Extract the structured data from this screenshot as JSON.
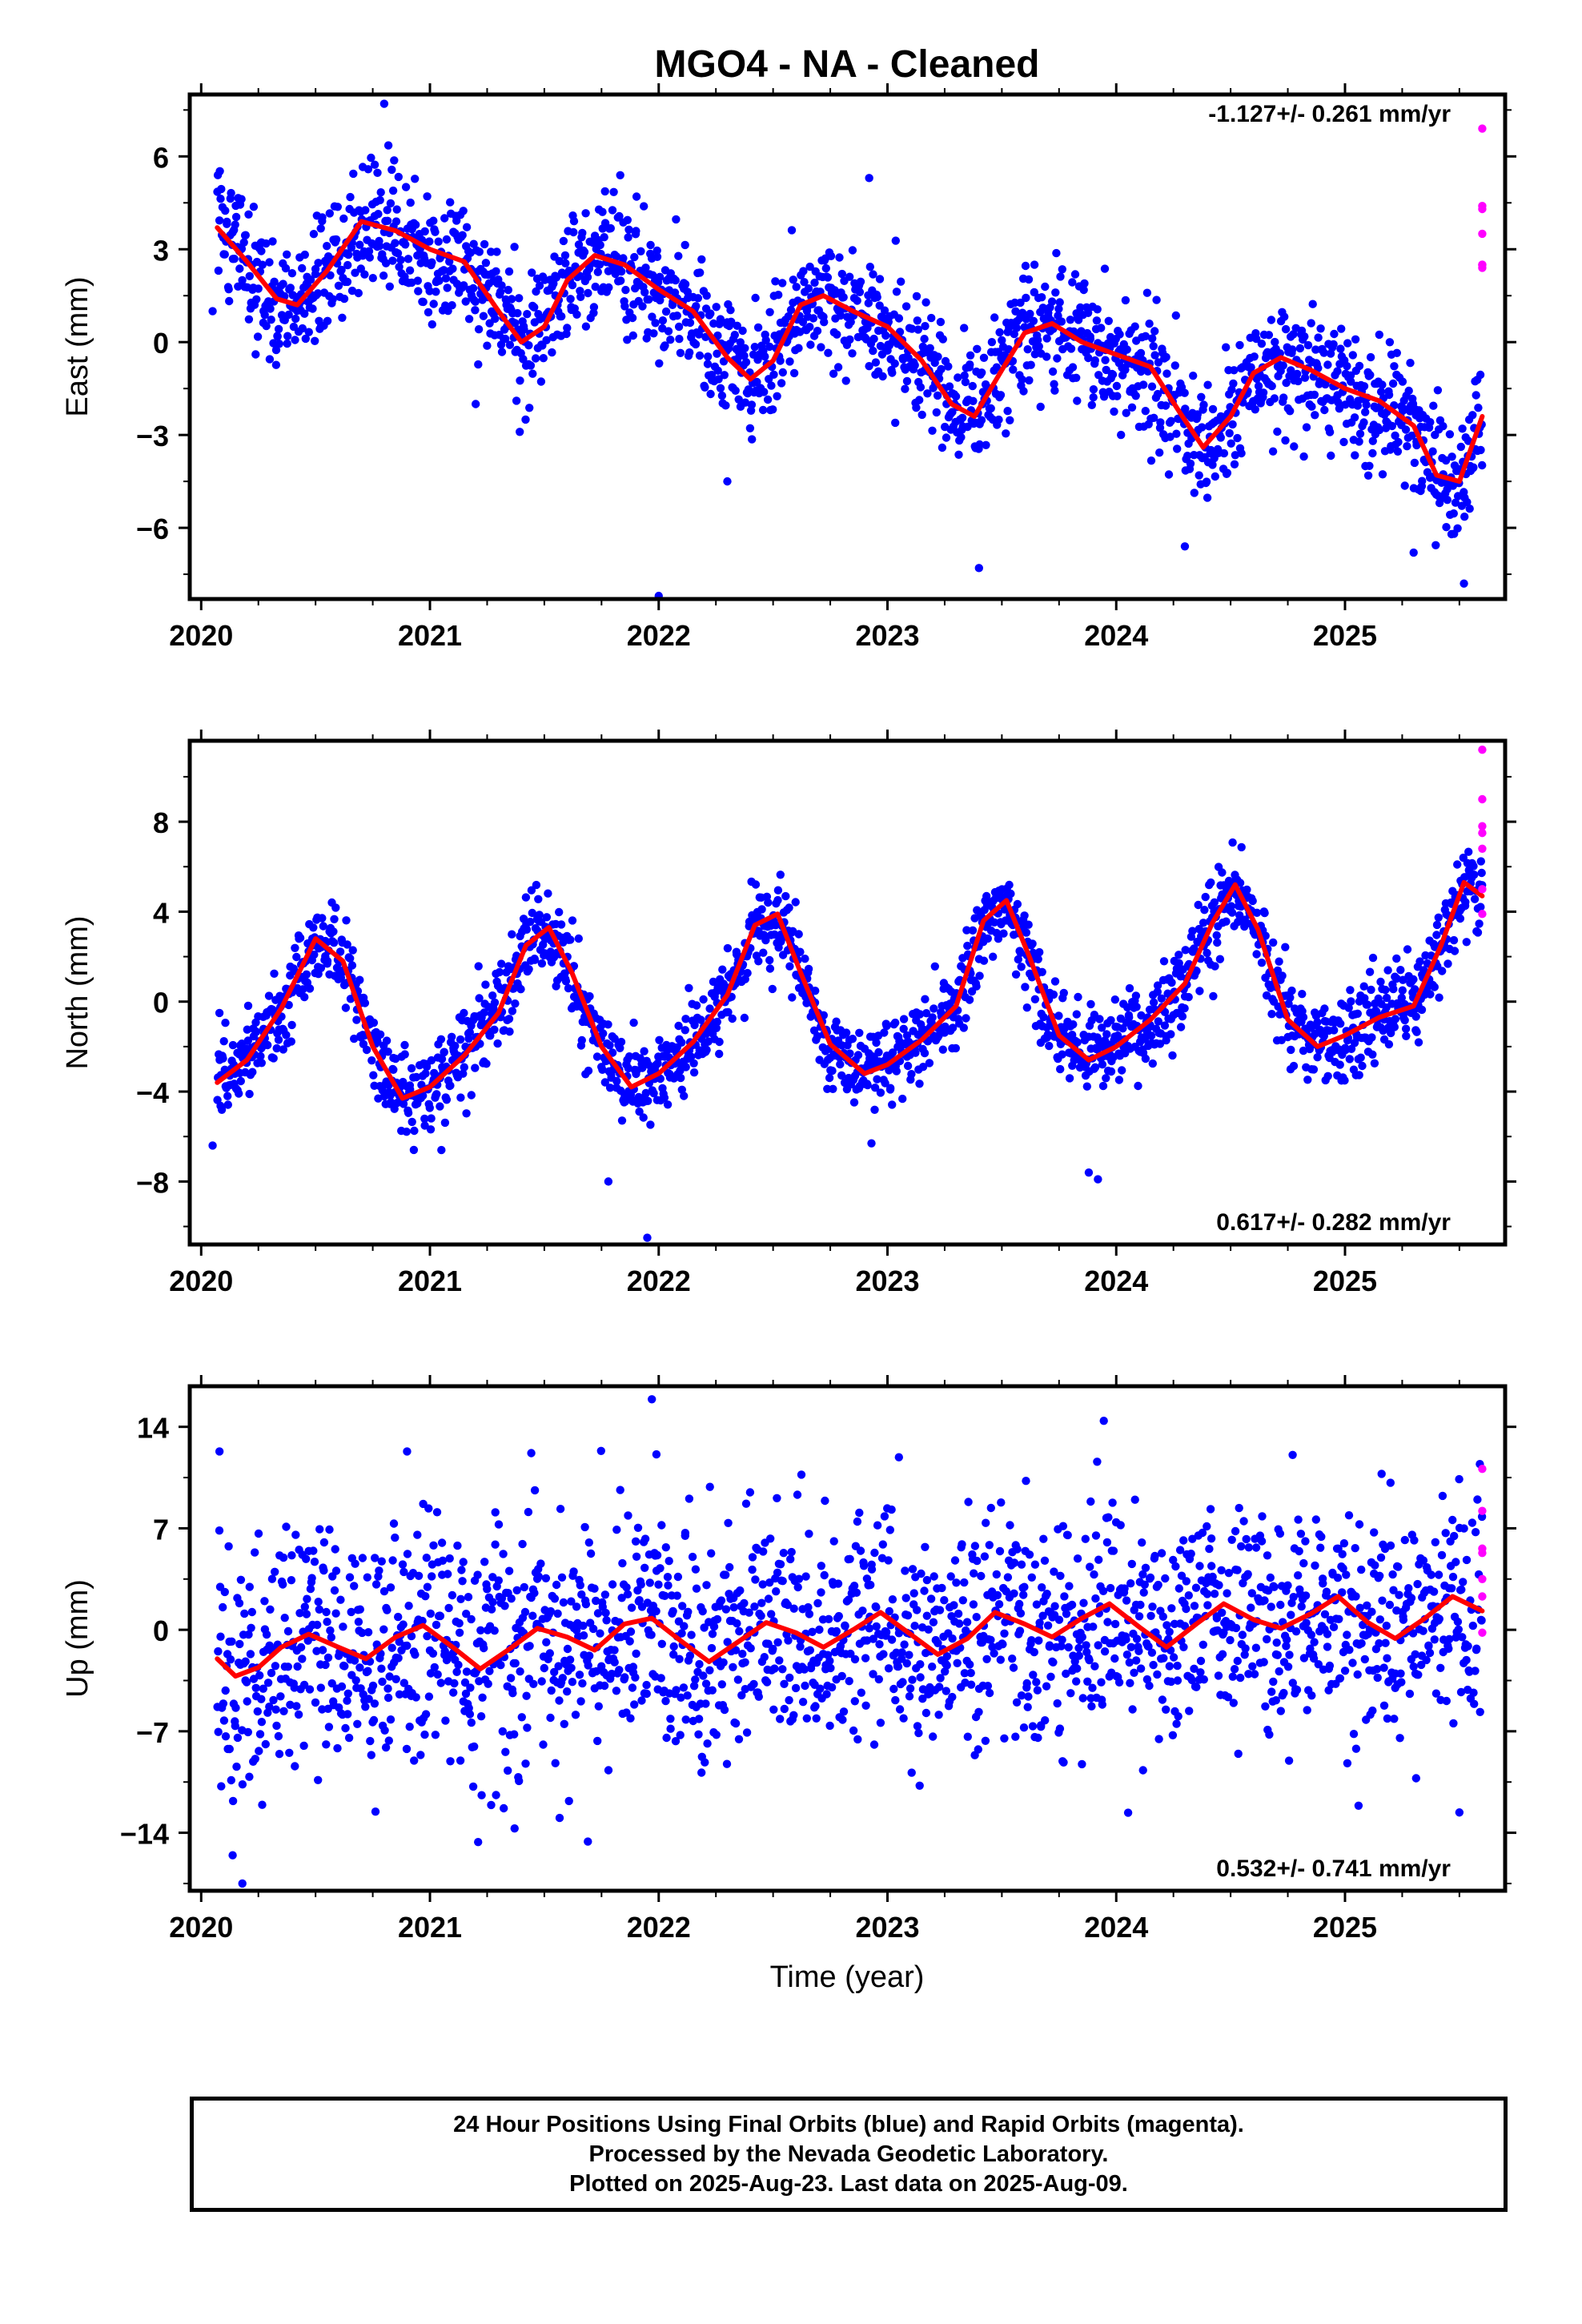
{
  "title": "MGO4  - NA - Cleaned",
  "xlabel": "Time (year)",
  "footer": {
    "line1": "24 Hour Positions Using Final Orbits (blue) and Rapid Orbits (magenta).",
    "line2": "Processed by the Nevada Geodetic Laboratory.",
    "line3": "Plotted on 2025-Aug-23. Last data on 2025-Aug-09."
  },
  "chart_data": [
    {
      "type": "scatter",
      "component": "east",
      "ylabel": "East (mm)",
      "rate_label": "-1.127+/- 0.261 mm/yr",
      "rate_position": "top-right",
      "xlim": [
        2019.95,
        2025.7
      ],
      "ylim": [
        -8.3,
        8.0
      ],
      "yticks": [
        -6,
        -3,
        0,
        3,
        6
      ],
      "yticklabels": [
        "−6",
        "−3",
        "0",
        "3",
        "6"
      ],
      "xticks": [
        2020,
        2021,
        2022,
        2023,
        2024,
        2025
      ],
      "xticklabels": [
        "2020",
        "2021",
        "2022",
        "2023",
        "2024",
        "2025"
      ],
      "colors": {
        "final": "#0000ff",
        "rapid": "#ff00ff",
        "model": "#ff0000"
      },
      "model": {
        "x": [
          2020.07,
          2020.2,
          2020.33,
          2020.42,
          2020.55,
          2020.7,
          2020.85,
          2021.0,
          2021.15,
          2021.3,
          2021.4,
          2021.5,
          2021.6,
          2021.72,
          2021.85,
          2022.0,
          2022.15,
          2022.3,
          2022.4,
          2022.5,
          2022.62,
          2022.72,
          2022.85,
          2023.0,
          2023.15,
          2023.28,
          2023.38,
          2023.5,
          2023.6,
          2023.72,
          2023.85,
          2024.0,
          2024.15,
          2024.28,
          2024.38,
          2024.5,
          2024.6,
          2024.72,
          2024.85,
          2025.0,
          2025.15,
          2025.3,
          2025.4,
          2025.5,
          2025.6
        ],
        "y": [
          3.7,
          2.6,
          1.4,
          1.2,
          2.3,
          3.9,
          3.6,
          3.0,
          2.6,
          1.0,
          0.0,
          0.5,
          2.0,
          2.8,
          2.5,
          1.7,
          1.0,
          -0.5,
          -1.2,
          -0.6,
          1.2,
          1.5,
          1.0,
          0.5,
          -0.6,
          -2.0,
          -2.4,
          -0.9,
          0.3,
          0.6,
          0.0,
          -0.4,
          -0.8,
          -2.3,
          -3.4,
          -2.4,
          -1.0,
          -0.5,
          -0.9,
          -1.5,
          -1.9,
          -2.7,
          -4.3,
          -4.5,
          -2.4
        ]
      },
      "rapid_points": {
        "x": [
          2025.6,
          2025.6,
          2025.6,
          2025.6,
          2025.6,
          2025.6,
          2025.6
        ],
        "y": [
          6.9,
          4.4,
          4.3,
          3.5,
          2.5,
          2.4,
          2.5
        ]
      },
      "final_points": {
        "noise": 1.0,
        "count": 1900,
        "outliers": {
          "x": [
            2020.05,
            2020.8,
            2021.2,
            2022.0,
            2022.3,
            2023.4,
            2024.3,
            2025.3,
            2025.52,
            2022.92
          ],
          "y": [
            1.0,
            7.7,
            -2.0,
            -8.2,
            -4.5,
            -7.3,
            -6.6,
            -6.8,
            -7.8,
            5.3
          ]
        }
      }
    },
    {
      "type": "scatter",
      "component": "north",
      "ylabel": "North (mm)",
      "rate_label": "0.617+/- 0.282 mm/yr",
      "rate_position": "bottom-right",
      "xlim": [
        2019.95,
        2025.7
      ],
      "ylim": [
        -10.8,
        11.6
      ],
      "yticks": [
        -8,
        -4,
        0,
        4,
        8
      ],
      "yticklabels": [
        "−8",
        "−4",
        "0",
        "4",
        "8"
      ],
      "xticks": [
        2020,
        2021,
        2022,
        2023,
        2024,
        2025
      ],
      "xticklabels": [
        "2020",
        "2021",
        "2022",
        "2023",
        "2024",
        "2025"
      ],
      "colors": {
        "final": "#0000ff",
        "rapid": "#ff00ff",
        "model": "#ff0000"
      },
      "model": {
        "x": [
          2020.07,
          2020.2,
          2020.35,
          2020.5,
          2020.62,
          2020.75,
          2020.88,
          2021.0,
          2021.15,
          2021.3,
          2021.42,
          2021.52,
          2021.62,
          2021.75,
          2021.88,
          2022.0,
          2022.15,
          2022.3,
          2022.42,
          2022.52,
          2022.62,
          2022.75,
          2022.9,
          2023.0,
          2023.15,
          2023.3,
          2023.42,
          2023.52,
          2023.62,
          2023.75,
          2023.88,
          2024.0,
          2024.15,
          2024.3,
          2024.42,
          2024.52,
          2024.62,
          2024.75,
          2024.88,
          2025.0,
          2025.15,
          2025.3,
          2025.42,
          2025.52,
          2025.6
        ],
        "y": [
          -3.6,
          -2.6,
          -0.3,
          2.8,
          1.8,
          -2.0,
          -4.3,
          -3.8,
          -2.4,
          -0.5,
          2.5,
          3.3,
          1.3,
          -2.0,
          -3.8,
          -3.2,
          -1.8,
          0.3,
          3.4,
          3.9,
          1.3,
          -1.9,
          -3.2,
          -2.8,
          -1.7,
          -0.2,
          3.6,
          4.5,
          2.0,
          -1.5,
          -2.6,
          -2.0,
          -0.8,
          0.8,
          3.5,
          5.2,
          3.2,
          -0.8,
          -2.0,
          -1.5,
          -0.7,
          -0.2,
          2.5,
          5.3,
          4.7
        ]
      },
      "rapid_points": {
        "x": [
          2025.6,
          2025.6,
          2025.6,
          2025.6,
          2025.6,
          2025.6,
          2025.6
        ],
        "y": [
          11.2,
          9.0,
          7.8,
          7.5,
          6.8,
          5.0,
          3.9
        ]
      },
      "final_points": {
        "noise": 0.95,
        "count": 1900,
        "outliers": {
          "x": [
            2021.78,
            2021.95,
            2023.88,
            2023.92,
            2020.05,
            2021.05,
            2022.93
          ],
          "y": [
            -8.0,
            -10.5,
            -7.6,
            -7.9,
            -6.4,
            -6.6,
            -6.3
          ]
        }
      }
    },
    {
      "type": "scatter",
      "component": "up",
      "ylabel": "Up (mm)",
      "rate_label": "0.532+/- 0.741 mm/yr",
      "rate_position": "bottom-right",
      "xlim": [
        2019.95,
        2025.7
      ],
      "ylim": [
        -18.0,
        16.8
      ],
      "yticks": [
        -14,
        -7,
        0,
        7,
        14
      ],
      "yticklabels": [
        "−14",
        "−7",
        "0",
        "7",
        "14"
      ],
      "xticks": [
        2020,
        2021,
        2022,
        2023,
        2024,
        2025
      ],
      "xticklabels": [
        "2020",
        "2021",
        "2022",
        "2023",
        "2024",
        "2025"
      ],
      "colors": {
        "final": "#0000ff",
        "rapid": "#ff00ff",
        "model": "#ff0000"
      },
      "model": {
        "x": [
          2020.07,
          2020.15,
          2020.25,
          2020.35,
          2020.47,
          2020.6,
          2020.72,
          2020.85,
          2020.97,
          2021.1,
          2021.22,
          2021.35,
          2021.47,
          2021.6,
          2021.72,
          2021.85,
          2021.97,
          2022.1,
          2022.22,
          2022.35,
          2022.47,
          2022.6,
          2022.72,
          2022.85,
          2022.97,
          2023.1,
          2023.22,
          2023.35,
          2023.47,
          2023.6,
          2023.72,
          2023.85,
          2023.97,
          2024.1,
          2024.22,
          2024.35,
          2024.47,
          2024.6,
          2024.72,
          2024.85,
          2024.97,
          2025.1,
          2025.22,
          2025.35,
          2025.47,
          2025.6
        ],
        "y": [
          -2.0,
          -3.2,
          -2.6,
          -1.2,
          -0.3,
          -1.2,
          -2.0,
          -0.5,
          0.3,
          -1.2,
          -2.7,
          -1.3,
          0.1,
          -0.5,
          -1.4,
          0.4,
          0.8,
          -0.8,
          -2.2,
          -0.8,
          0.5,
          -0.2,
          -1.2,
          0.0,
          1.2,
          -0.3,
          -1.7,
          -0.6,
          1.2,
          0.4,
          -0.5,
          0.8,
          1.8,
          0.2,
          -1.2,
          0.4,
          1.8,
          0.7,
          0.1,
          1.1,
          2.3,
          0.5,
          -0.6,
          0.8,
          2.3,
          1.3
        ]
      },
      "rapid_points": {
        "x": [
          2025.6,
          2025.6,
          2025.6,
          2025.6,
          2025.6,
          2025.6,
          2025.6
        ],
        "y": [
          11.1,
          8.2,
          5.6,
          5.3,
          3.5,
          2.3,
          -0.2
        ]
      },
      "final_points": {
        "noise": 4.2,
        "count": 1900,
        "outliers": {
          "x": [
            2020.08,
            2020.18,
            2021.37,
            2021.97,
            2021.99,
            2025.5,
            2020.9,
            2023.05
          ],
          "y": [
            12.3,
            -17.5,
            -13.7,
            15.9,
            12.1,
            -12.6,
            12.3,
            11.9
          ]
        }
      }
    }
  ]
}
